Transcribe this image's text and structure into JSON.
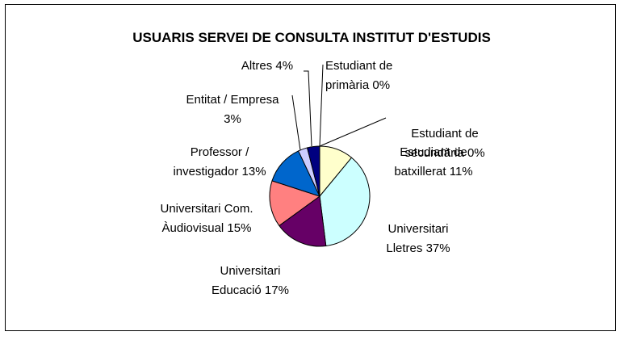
{
  "chart_data": {
    "type": "pie",
    "title": "USUARIS SERVEI DE CONSULTA INSTITUT D'ESTUDIS",
    "categories": [
      "Estudiant de primària",
      "Estudiant de secundària",
      "Estudiant de batxillerat",
      "Universitari Lletres",
      "Universitari Educació",
      "Universitari Com. Àudiovisual",
      "Professor / investigador",
      "Entitat / Empresa",
      "Altres"
    ],
    "values": [
      0,
      0,
      11,
      37,
      17,
      15,
      13,
      3,
      4
    ],
    "value_labels": [
      "0%",
      "0%",
      "11%",
      "37%",
      "17%",
      "15%",
      "13%",
      "3%",
      "4%"
    ],
    "colors": [
      "#9999ff",
      "#993366",
      "#ffffcc",
      "#ccffff",
      "#660066",
      "#ff8080",
      "#0066cc",
      "#ccccff",
      "#000080"
    ]
  }
}
